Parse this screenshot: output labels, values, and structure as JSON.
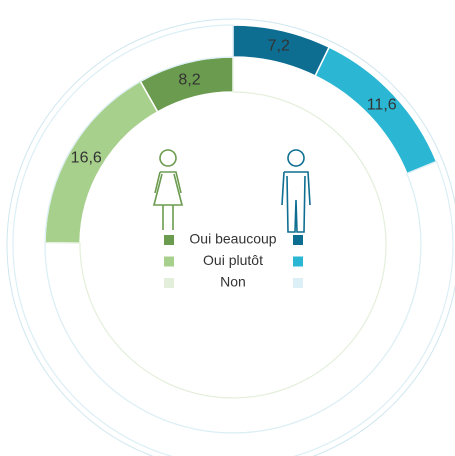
{
  "chart_data": {
    "type": "donut",
    "categories": [
      "Oui beaucoup",
      "Oui plutôt",
      "Non"
    ],
    "series": [
      {
        "values": [
          8.2,
          16.6,
          75.2
        ],
        "value_labels": [
          "8,2",
          "16,6",
          null
        ],
        "colors": [
          "#6b9b4f",
          "#a8d08d",
          "#e3efda"
        ],
        "direction": "counterclockwise"
      },
      {
        "values": [
          7.2,
          11.6,
          81.2
        ],
        "value_labels": [
          "7,2",
          "11,6",
          null
        ],
        "colors": [
          "#0e6e91",
          "#2bb6d3",
          "#dceff6"
        ],
        "direction": "clockwise"
      }
    ]
  }
}
